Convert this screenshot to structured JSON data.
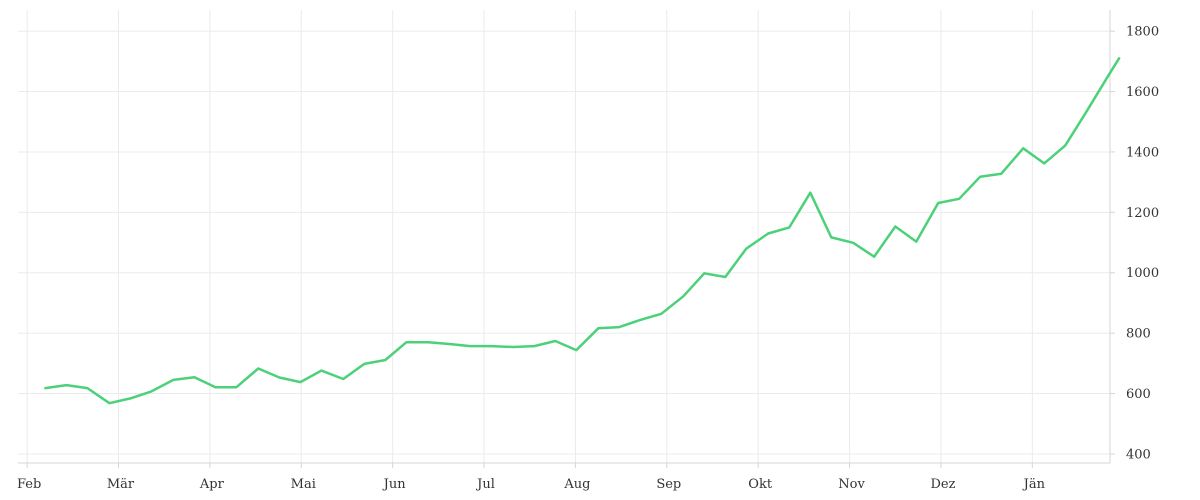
{
  "chart_data": {
    "type": "line",
    "title": "",
    "xlabel": "",
    "ylabel": "",
    "x_tick_labels": [
      "Feb",
      "Mär",
      "Apr",
      "Mai",
      "Jun",
      "Jul",
      "Aug",
      "Sep",
      "Okt",
      "Nov",
      "Dez",
      "Jän"
    ],
    "y_ticks": [
      400,
      600,
      800,
      1000,
      1200,
      1400,
      1600,
      1800
    ],
    "ylim": [
      370,
      1870
    ],
    "xlim": [
      -0.1,
      11.85
    ],
    "grid": true,
    "y_axis_side": "right",
    "legend": "none",
    "series": [
      {
        "color": "#4cd17a",
        "points": [
          [
            0.2,
            618
          ],
          [
            0.43,
            628
          ],
          [
            0.66,
            618
          ],
          [
            0.9,
            568
          ],
          [
            1.13,
            584
          ],
          [
            1.36,
            607
          ],
          [
            1.6,
            645
          ],
          [
            1.83,
            654
          ],
          [
            2.06,
            621
          ],
          [
            2.29,
            621
          ],
          [
            2.53,
            683
          ],
          [
            2.76,
            653
          ],
          [
            2.99,
            638
          ],
          [
            3.22,
            676
          ],
          [
            3.46,
            648
          ],
          [
            3.69,
            698
          ],
          [
            3.92,
            711
          ],
          [
            4.15,
            770
          ],
          [
            4.39,
            770
          ],
          [
            4.62,
            764
          ],
          [
            4.85,
            757
          ],
          [
            5.08,
            757
          ],
          [
            5.32,
            754
          ],
          [
            5.55,
            757
          ],
          [
            5.78,
            774
          ],
          [
            6.01,
            744
          ],
          [
            6.25,
            816
          ],
          [
            6.48,
            820
          ],
          [
            6.71,
            844
          ],
          [
            6.94,
            864
          ],
          [
            7.18,
            922
          ],
          [
            7.41,
            998
          ],
          [
            7.64,
            986
          ],
          [
            7.87,
            1080
          ],
          [
            8.11,
            1130
          ],
          [
            8.34,
            1150
          ],
          [
            8.57,
            1265
          ],
          [
            8.8,
            1117
          ],
          [
            9.04,
            1099
          ],
          [
            9.27,
            1053
          ],
          [
            9.5,
            1153
          ],
          [
            9.73,
            1103
          ],
          [
            9.97,
            1231
          ],
          [
            10.2,
            1245
          ],
          [
            10.43,
            1318
          ],
          [
            10.66,
            1328
          ],
          [
            10.9,
            1412
          ],
          [
            11.13,
            1362
          ],
          [
            11.36,
            1421
          ],
          [
            11.59,
            1532
          ],
          [
            11.83,
            1652
          ],
          [
            11.95,
            1710
          ]
        ]
      }
    ]
  }
}
